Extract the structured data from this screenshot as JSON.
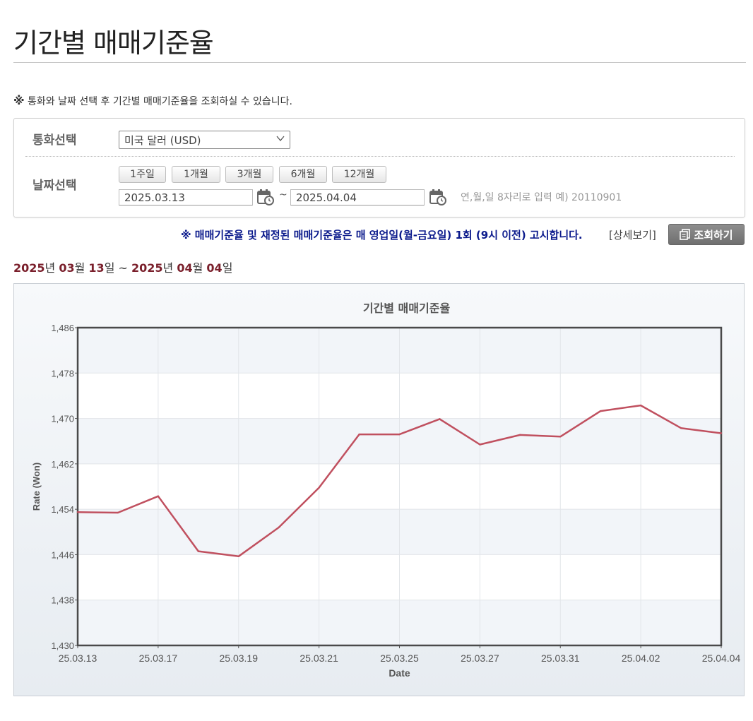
{
  "page": {
    "title": "기간별 매매기준율",
    "notice_mark": "※",
    "notice_text": " 통화와 날짜 선택 후 기간별 매매기준율을 조회하실 수 있습니다."
  },
  "search": {
    "currency_label": "통화선택",
    "currency_value": "미국 달러 (USD)",
    "date_label": "날짜선택",
    "period_buttons": [
      "1주일",
      "1개월",
      "3개월",
      "6개월",
      "12개월"
    ],
    "start_date": "2025.03.13",
    "end_date": "2025.04.04",
    "range_sep": "~",
    "date_hint": "연,월,일 8자리로 입력 예) 20110901"
  },
  "announce": {
    "text": "※ 매매기준율 및 재정된 매매기준율은 매 영업일(월-금요일) 1회 (9시 이전) 고시합니다.",
    "detail_link": "[상세보기]",
    "query_button": "조회하기"
  },
  "range_display": {
    "y1": "2025",
    "u_year1": "년 ",
    "m1": "03",
    "u_month1": "월 ",
    "d1": "13",
    "u_day1": "일",
    "sep": " ~ ",
    "y2": "2025",
    "u_year2": "년 ",
    "m2": "04",
    "u_month2": "월 ",
    "d2": "04",
    "u_day2": "일"
  },
  "colors": {
    "line": "#c0505f",
    "accent_date": "#7a1f2b",
    "announce": "#0b1a8c"
  },
  "chart_data": {
    "type": "line",
    "title": "기간별 매매기준율",
    "xlabel": "Date",
    "ylabel": "Rate (Won)",
    "ylim": [
      1430,
      1486
    ],
    "yticks": [
      1430,
      1438,
      1446,
      1454,
      1462,
      1470,
      1478,
      1486
    ],
    "ytick_labels": [
      "1,430",
      "1,438",
      "1,446",
      "1,454",
      "1,462",
      "1,470",
      "1,478",
      "1,486"
    ],
    "xtick_labels": [
      "25.03.13",
      "25.03.17",
      "25.03.19",
      "25.03.21",
      "25.03.25",
      "25.03.27",
      "25.03.31",
      "25.04.02",
      "25.04.04"
    ],
    "xtick_positions": [
      0,
      2,
      4,
      6,
      8,
      10,
      12,
      14,
      16
    ],
    "grid": true,
    "legend": "none",
    "series": [
      {
        "x": [
          "25.03.13",
          "25.03.14",
          "25.03.17",
          "25.03.18",
          "25.03.19",
          "25.03.20",
          "25.03.21",
          "25.03.24",
          "25.03.25",
          "25.03.26",
          "25.03.27",
          "25.03.28",
          "25.03.31",
          "25.04.01",
          "25.04.02",
          "25.04.03",
          "25.04.04"
        ],
        "values": [
          1453.5,
          1453.4,
          1456.3,
          1446.6,
          1445.7,
          1450.8,
          1457.8,
          1467.2,
          1467.2,
          1469.9,
          1465.4,
          1467.1,
          1466.8,
          1471.3,
          1472.3,
          1468.3,
          1467.4
        ]
      }
    ]
  }
}
